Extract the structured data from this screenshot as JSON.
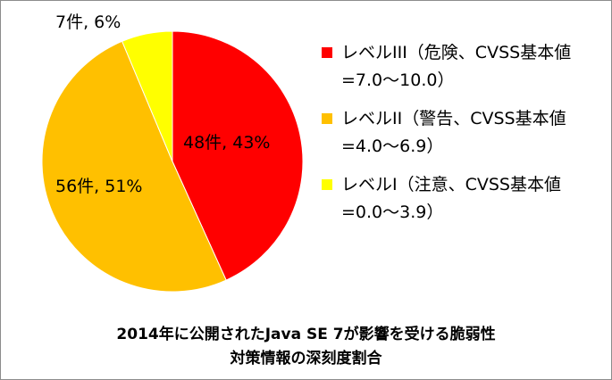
{
  "chart_data": {
    "type": "pie",
    "title": [
      "2014年に公開されたJava SE 7が影響を受ける脆弱性",
      "対策情報の深刻度割合"
    ],
    "slices": [
      {
        "category": "レベルIII（危険、CVSS基本値=7.0〜10.0）",
        "count": 48,
        "percent": 43,
        "label": "48件, 43%",
        "color": "#ff0000"
      },
      {
        "category": "レベルII（警告、CVSS基本値=4.0〜6.9）",
        "count": 56,
        "percent": 51,
        "label": "56件, 51%",
        "color": "#ffc000"
      },
      {
        "category": "レベルI（注意、CVSS基本値=0.0〜3.9）",
        "count": 7,
        "percent": 6,
        "label": "7件, 6%",
        "color": "#ffff00"
      }
    ],
    "legend": {
      "position": "right",
      "items": [
        {
          "line1": "レベルIII（危険、CVSS基本値",
          "line2": "=7.0〜10.0）",
          "color": "#ff0000"
        },
        {
          "line1": "レベルII（警告、CVSS基本値",
          "line2": "=4.0〜6.9）",
          "color": "#ffc000"
        },
        {
          "line1": "レベルI（注意、CVSS基本値",
          "line2": "=0.0〜3.9）",
          "color": "#ffff00"
        }
      ]
    }
  }
}
